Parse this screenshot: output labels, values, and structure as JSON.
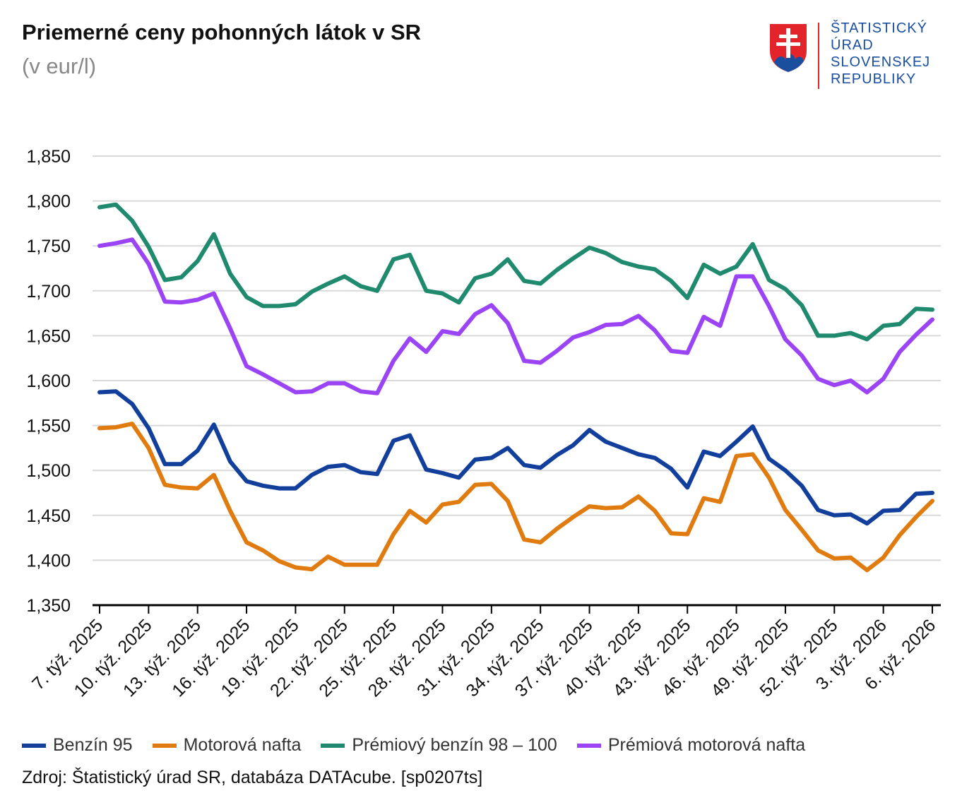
{
  "header": {
    "title": "Priemerné ceny pohonných látok v SR",
    "subtitle": "(v eur/l)"
  },
  "logo": {
    "lines": [
      "ŠTATISTICKÝ",
      "ÚRAD",
      "SLOVENSKEJ",
      "REPUBLIKY"
    ]
  },
  "source": "Zdroj: Štatistický úrad SR, databáza DATAcube. [sp0207ts]",
  "chart_data": {
    "type": "line",
    "title": "Priemerné ceny pohonných látok v SR",
    "ylabel": "(v eur/l)",
    "ylim": [
      1.35,
      1.85
    ],
    "y_ticks": [
      "1,350",
      "1,400",
      "1,450",
      "1,500",
      "1,550",
      "1,600",
      "1,650",
      "1,700",
      "1,750",
      "1,800",
      "1,850"
    ],
    "x_tick_every": 3,
    "x_tick_labels": [
      "7. týž. 2025",
      "10. týž. 2025",
      "13. týž. 2025",
      "16. týž. 2025",
      "19. týž. 2025",
      "22. týž. 2025",
      "25. týž. 2025",
      "28. týž. 2025",
      "31. týž. 2025",
      "34. týž. 2025",
      "37. týž. 2025",
      "40. týž. 2025",
      "43. týž. 2025",
      "46. týž. 2025",
      "49. týž. 2025",
      "52. týž. 2025",
      "3. týž. 2026",
      "6. týž. 2026"
    ],
    "grid": true,
    "legend_position": "bottom",
    "series": [
      {
        "name": "Benzín 95",
        "color": "#123f9c",
        "values": [
          1.587,
          1.588,
          1.574,
          1.547,
          1.507,
          1.507,
          1.522,
          1.551,
          1.51,
          1.488,
          1.483,
          1.48,
          1.48,
          1.495,
          1.504,
          1.506,
          1.498,
          1.496,
          1.533,
          1.539,
          1.501,
          1.497,
          1.492,
          1.512,
          1.514,
          1.525,
          1.506,
          1.503,
          1.517,
          1.528,
          1.545,
          1.532,
          1.525,
          1.518,
          1.514,
          1.502,
          1.481,
          1.521,
          1.516,
          1.532,
          1.549,
          1.513,
          1.5,
          1.483,
          1.456,
          1.45,
          1.451,
          1.441,
          1.455,
          1.456,
          1.474,
          1.475
        ]
      },
      {
        "name": "Motorová nafta",
        "color": "#e07b0f",
        "values": [
          1.547,
          1.548,
          1.552,
          1.525,
          1.484,
          1.481,
          1.48,
          1.495,
          1.455,
          1.42,
          1.411,
          1.399,
          1.392,
          1.39,
          1.404,
          1.395,
          1.395,
          1.395,
          1.429,
          1.455,
          1.442,
          1.462,
          1.465,
          1.484,
          1.485,
          1.466,
          1.423,
          1.42,
          1.435,
          1.448,
          1.46,
          1.458,
          1.459,
          1.471,
          1.455,
          1.43,
          1.429,
          1.469,
          1.465,
          1.516,
          1.518,
          1.492,
          1.456,
          1.434,
          1.411,
          1.402,
          1.403,
          1.389,
          1.403,
          1.428,
          1.448,
          1.466
        ]
      },
      {
        "name": "Prémiový benzín 98 – 100",
        "color": "#1f8a6e",
        "values": [
          1.793,
          1.796,
          1.778,
          1.749,
          1.712,
          1.715,
          1.733,
          1.763,
          1.719,
          1.693,
          1.683,
          1.683,
          1.685,
          1.699,
          1.708,
          1.716,
          1.705,
          1.7,
          1.735,
          1.74,
          1.7,
          1.697,
          1.687,
          1.714,
          1.719,
          1.735,
          1.711,
          1.708,
          1.723,
          1.736,
          1.748,
          1.742,
          1.732,
          1.727,
          1.724,
          1.711,
          1.692,
          1.729,
          1.719,
          1.727,
          1.752,
          1.712,
          1.702,
          1.684,
          1.65,
          1.65,
          1.653,
          1.646,
          1.661,
          1.663,
          1.68,
          1.679
        ]
      },
      {
        "name": "Prémiová motorová nafta",
        "color": "#9b44f5",
        "values": [
          1.75,
          1.753,
          1.757,
          1.73,
          1.688,
          1.687,
          1.69,
          1.697,
          1.658,
          1.616,
          1.607,
          1.597,
          1.587,
          1.588,
          1.597,
          1.597,
          1.588,
          1.586,
          1.622,
          1.647,
          1.632,
          1.655,
          1.652,
          1.674,
          1.684,
          1.664,
          1.622,
          1.62,
          1.633,
          1.648,
          1.654,
          1.662,
          1.663,
          1.672,
          1.656,
          1.633,
          1.631,
          1.671,
          1.661,
          1.716,
          1.716,
          1.683,
          1.646,
          1.628,
          1.602,
          1.595,
          1.6,
          1.587,
          1.602,
          1.632,
          1.651,
          1.668
        ]
      }
    ]
  }
}
